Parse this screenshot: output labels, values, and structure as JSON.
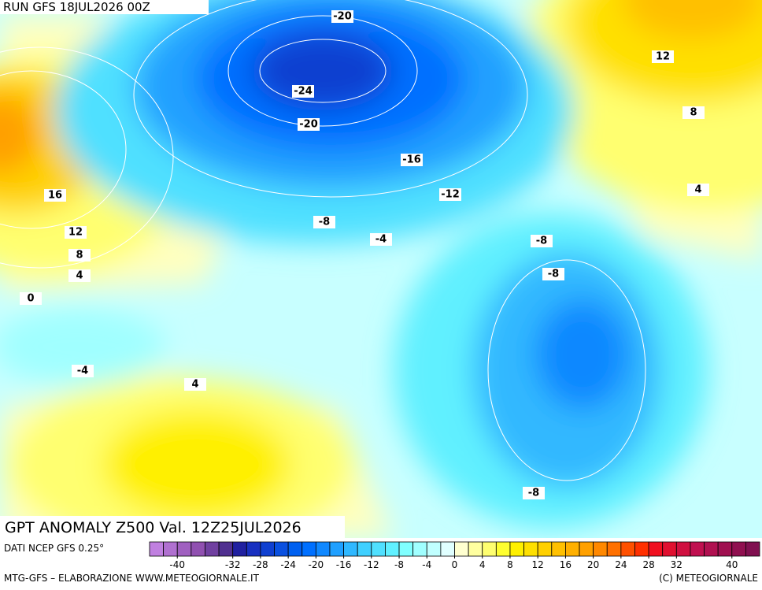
{
  "header": "RUN GFS 18JUL2026 00Z",
  "title": "GPT ANOMALY Z500 Val. 12Z25JUL2026",
  "source": "DATI NCEP GFS 0.25°",
  "credit": "MTG-GFS – ELABORAZIONE WWW.METEOGIORNALE.IT",
  "copyright": "(C) METEOGIORNALE",
  "contour_labels": [
    "-20",
    "-24",
    "-20",
    "-16",
    "-12",
    "-8",
    "-4",
    "-8",
    "-8",
    "-8",
    "16",
    "12",
    "8",
    "4",
    "0",
    "-4",
    "4",
    "12",
    "8",
    "4"
  ],
  "colorbar": {
    "range": [
      -44,
      44
    ],
    "ticks": [
      -40,
      -32,
      -28,
      -24,
      -20,
      -16,
      -12,
      -8,
      -4,
      0,
      4,
      8,
      12,
      16,
      20,
      24,
      28,
      32,
      40
    ],
    "colors": [
      "#c080e0",
      "#b070d0",
      "#a060c0",
      "#9050b0",
      "#7040a0",
      "#503090",
      "#2020a0",
      "#1830c0",
      "#1040d0",
      "#0a50e0",
      "#0060f0",
      "#0070ff",
      "#1088ff",
      "#20a0ff",
      "#30b8ff",
      "#40d0ff",
      "#50e0ff",
      "#60f0ff",
      "#80ffff",
      "#a0ffff",
      "#c0ffff",
      "#e0ffff",
      "#ffffd0",
      "#ffffa0",
      "#ffff70",
      "#ffff30",
      "#fff000",
      "#ffe000",
      "#ffd000",
      "#ffc000",
      "#ffb000",
      "#ffa000",
      "#ff8800",
      "#ff7000",
      "#ff5000",
      "#ff3000",
      "#f01020",
      "#e01030",
      "#d01040",
      "#c01050",
      "#b01050",
      "#a01050",
      "#901050",
      "#801050"
    ]
  }
}
